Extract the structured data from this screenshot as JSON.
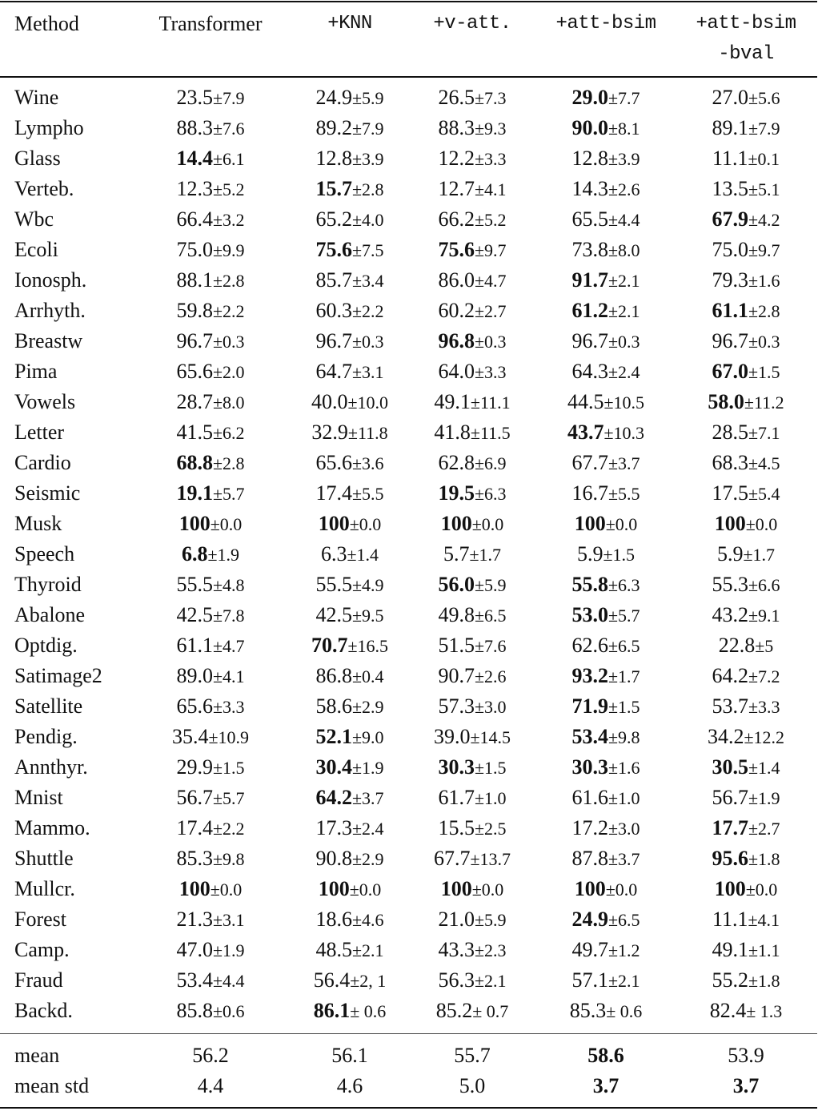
{
  "header": [
    "Method",
    "Transformer",
    "+KNN",
    "+v-att.",
    "+att-bsim",
    "+att-bsim",
    "-bval"
  ],
  "rows": [
    {
      "name": "Wine",
      "cells": [
        [
          "23.5",
          "±7.9",
          0
        ],
        [
          "24.9",
          "±5.9",
          0
        ],
        [
          "26.5",
          "±7.3",
          0
        ],
        [
          "29.0",
          "±7.7",
          1
        ],
        [
          "27.0",
          "±5.6",
          0
        ]
      ]
    },
    {
      "name": "Lympho",
      "cells": [
        [
          "88.3",
          "±7.6",
          0
        ],
        [
          "89.2",
          "±7.9",
          0
        ],
        [
          "88.3",
          "±9.3",
          0
        ],
        [
          "90.0",
          "±8.1",
          1
        ],
        [
          "89.1",
          "±7.9",
          0
        ]
      ]
    },
    {
      "name": "Glass",
      "cells": [
        [
          "14.4",
          "±6.1",
          1
        ],
        [
          "12.8",
          "±3.9",
          0
        ],
        [
          "12.2",
          "±3.3",
          0
        ],
        [
          "12.8",
          "±3.9",
          0
        ],
        [
          "11.1",
          "±0.1",
          0
        ]
      ]
    },
    {
      "name": "Verteb.",
      "cells": [
        [
          "12.3",
          "±5.2",
          0
        ],
        [
          "15.7",
          "±2.8",
          1
        ],
        [
          "12.7",
          "±4.1",
          0
        ],
        [
          "14.3",
          "±2.6",
          0
        ],
        [
          "13.5",
          "±5.1",
          0
        ]
      ]
    },
    {
      "name": "Wbc",
      "cells": [
        [
          "66.4",
          "±3.2",
          0
        ],
        [
          "65.2",
          "±4.0",
          0
        ],
        [
          "66.2",
          "±5.2",
          0
        ],
        [
          "65.5",
          "±4.4",
          0
        ],
        [
          "67.9",
          "±4.2",
          1
        ]
      ]
    },
    {
      "name": "Ecoli",
      "cells": [
        [
          "75.0",
          "±9.9",
          0
        ],
        [
          "75.6",
          "±7.5",
          1
        ],
        [
          "75.6",
          "±9.7",
          1
        ],
        [
          "73.8",
          "±8.0",
          0
        ],
        [
          "75.0",
          "±9.7",
          0
        ]
      ]
    },
    {
      "name": "Ionosph.",
      "cells": [
        [
          "88.1",
          "±2.8",
          0
        ],
        [
          "85.7",
          "±3.4",
          0
        ],
        [
          "86.0",
          "±4.7",
          0
        ],
        [
          "91.7",
          "±2.1",
          1
        ],
        [
          "79.3",
          "±1.6",
          0
        ]
      ]
    },
    {
      "name": "Arrhyth.",
      "cells": [
        [
          "59.8",
          "±2.2",
          0
        ],
        [
          "60.3",
          "±2.2",
          0
        ],
        [
          "60.2",
          "±2.7",
          0
        ],
        [
          "61.2",
          "±2.1",
          1
        ],
        [
          "61.1",
          "±2.8",
          1
        ]
      ]
    },
    {
      "name": "Breastw",
      "cells": [
        [
          "96.7",
          "±0.3",
          0
        ],
        [
          "96.7",
          "±0.3",
          0
        ],
        [
          "96.8",
          "±0.3",
          1
        ],
        [
          "96.7",
          "±0.3",
          0
        ],
        [
          "96.7",
          "±0.3",
          0
        ]
      ]
    },
    {
      "name": "Pima",
      "cells": [
        [
          "65.6",
          "±2.0",
          0
        ],
        [
          "64.7",
          "±3.1",
          0
        ],
        [
          "64.0",
          "±3.3",
          0
        ],
        [
          "64.3",
          "±2.4",
          0
        ],
        [
          "67.0",
          "±1.5",
          1
        ]
      ]
    },
    {
      "name": "Vowels",
      "cells": [
        [
          "28.7",
          "±8.0",
          0
        ],
        [
          "40.0",
          "±10.0",
          0
        ],
        [
          "49.1",
          "±11.1",
          0
        ],
        [
          "44.5",
          "±10.5",
          0
        ],
        [
          "58.0",
          "±11.2",
          1
        ]
      ]
    },
    {
      "name": "Letter",
      "cells": [
        [
          "41.5",
          "±6.2",
          0
        ],
        [
          "32.9",
          "±11.8",
          0
        ],
        [
          "41.8",
          "±11.5",
          0
        ],
        [
          "43.7",
          "±10.3",
          1
        ],
        [
          "28.5",
          "±7.1",
          0
        ]
      ]
    },
    {
      "name": "Cardio",
      "cells": [
        [
          "68.8",
          "±2.8",
          1
        ],
        [
          "65.6",
          "±3.6",
          0
        ],
        [
          "62.8",
          "±6.9",
          0
        ],
        [
          "67.7",
          "±3.7",
          0
        ],
        [
          "68.3",
          "±4.5",
          0
        ]
      ]
    },
    {
      "name": "Seismic",
      "cells": [
        [
          "19.1",
          "±5.7",
          1
        ],
        [
          "17.4",
          "±5.5",
          0
        ],
        [
          "19.5",
          "±6.3",
          1
        ],
        [
          "16.7",
          "±5.5",
          0
        ],
        [
          "17.5",
          "±5.4",
          0
        ]
      ]
    },
    {
      "name": "Musk",
      "cells": [
        [
          "100",
          "±0.0",
          1
        ],
        [
          "100",
          "±0.0",
          1
        ],
        [
          "100",
          "±0.0",
          1
        ],
        [
          "100",
          "±0.0",
          1
        ],
        [
          "100",
          "±0.0",
          1
        ]
      ]
    },
    {
      "name": "Speech",
      "cells": [
        [
          "6.8",
          "±1.9",
          1
        ],
        [
          "6.3",
          "±1.4",
          0
        ],
        [
          "5.7",
          "±1.7",
          0
        ],
        [
          "5.9",
          "±1.5",
          0
        ],
        [
          "5.9",
          "±1.7",
          0
        ]
      ]
    },
    {
      "name": "Thyroid",
      "cells": [
        [
          "55.5",
          "±4.8",
          0
        ],
        [
          "55.5",
          "±4.9",
          0
        ],
        [
          "56.0",
          "±5.9",
          1
        ],
        [
          "55.8",
          "±6.3",
          1
        ],
        [
          "55.3",
          "±6.6",
          0
        ]
      ]
    },
    {
      "name": "Abalone",
      "cells": [
        [
          "42.5",
          "±7.8",
          0
        ],
        [
          "42.5",
          "±9.5",
          0
        ],
        [
          "49.8",
          "±6.5",
          0
        ],
        [
          "53.0",
          "±5.7",
          1
        ],
        [
          "43.2",
          "±9.1",
          0
        ]
      ]
    },
    {
      "name": "Optdig.",
      "cells": [
        [
          "61.1",
          "±4.7",
          0
        ],
        [
          "70.7",
          "±16.5",
          1
        ],
        [
          "51.5",
          "±7.6",
          0
        ],
        [
          "62.6",
          "±6.5",
          0
        ],
        [
          "22.8",
          "±5",
          0
        ]
      ]
    },
    {
      "name": "Satimage2",
      "cells": [
        [
          "89.0",
          "±4.1",
          0
        ],
        [
          "86.8",
          "±0.4",
          0
        ],
        [
          "90.7",
          "±2.6",
          0
        ],
        [
          "93.2",
          "±1.7",
          1
        ],
        [
          "64.2",
          "±7.2",
          0
        ]
      ]
    },
    {
      "name": "Satellite",
      "cells": [
        [
          "65.6",
          "±3.3",
          0
        ],
        [
          "58.6",
          "±2.9",
          0
        ],
        [
          "57.3",
          "±3.0",
          0
        ],
        [
          "71.9",
          "±1.5",
          1
        ],
        [
          "53.7",
          "±3.3",
          0
        ]
      ]
    },
    {
      "name": "Pendig.",
      "cells": [
        [
          "35.4",
          "±10.9",
          0
        ],
        [
          "52.1",
          "±9.0",
          1
        ],
        [
          "39.0",
          "±14.5",
          0
        ],
        [
          "53.4",
          "±9.8",
          1
        ],
        [
          "34.2",
          "±12.2",
          0
        ]
      ]
    },
    {
      "name": "Annthyr.",
      "cells": [
        [
          "29.9",
          "±1.5",
          0
        ],
        [
          "30.4",
          "±1.9",
          1
        ],
        [
          "30.3",
          "±1.5",
          1
        ],
        [
          "30.3",
          "±1.6",
          1
        ],
        [
          "30.5",
          "±1.4",
          1
        ]
      ]
    },
    {
      "name": "Mnist",
      "cells": [
        [
          "56.7",
          "±5.7",
          0
        ],
        [
          "64.2",
          "±3.7",
          1
        ],
        [
          "61.7",
          "±1.0",
          0
        ],
        [
          "61.6",
          "±1.0",
          0
        ],
        [
          "56.7",
          "±1.9",
          0
        ]
      ]
    },
    {
      "name": "Mammo.",
      "cells": [
        [
          "17.4",
          "±2.2",
          0
        ],
        [
          "17.3",
          "±2.4",
          0
        ],
        [
          "15.5",
          "±2.5",
          0
        ],
        [
          "17.2",
          "±3.0",
          0
        ],
        [
          "17.7",
          "±2.7",
          1
        ]
      ]
    },
    {
      "name": "Shuttle",
      "cells": [
        [
          "85.3",
          "±9.8",
          0
        ],
        [
          "90.8",
          "±2.9",
          0
        ],
        [
          "67.7",
          "±13.7",
          0
        ],
        [
          "87.8",
          "±3.7",
          0
        ],
        [
          "95.6",
          "±1.8",
          1
        ]
      ]
    },
    {
      "name": "Mullcr.",
      "cells": [
        [
          "100",
          "±0.0",
          1
        ],
        [
          "100",
          "±0.0",
          1
        ],
        [
          "100",
          "±0.0",
          1
        ],
        [
          "100",
          "±0.0",
          1
        ],
        [
          "100",
          "±0.0",
          1
        ]
      ]
    },
    {
      "name": "Forest",
      "cells": [
        [
          "21.3",
          "±3.1",
          0
        ],
        [
          "18.6",
          "±4.6",
          0
        ],
        [
          "21.0",
          "±5.9",
          0
        ],
        [
          "24.9",
          "±6.5",
          1
        ],
        [
          "11.1",
          "±4.1",
          0
        ]
      ]
    },
    {
      "name": "Camp.",
      "cells": [
        [
          "47.0",
          "±1.9",
          0
        ],
        [
          "48.5",
          "±2.1",
          0
        ],
        [
          "43.3",
          "±2.3",
          0
        ],
        [
          "49.7",
          "±1.2",
          0
        ],
        [
          "49.1",
          "±1.1",
          0
        ]
      ]
    },
    {
      "name": "Fraud",
      "cells": [
        [
          "53.4",
          "±4.4",
          0
        ],
        [
          "56.4",
          "±2, 1",
          0
        ],
        [
          "56.3",
          "±2.1",
          0
        ],
        [
          "57.1",
          "±2.1",
          0
        ],
        [
          "55.2",
          "±1.8",
          0
        ]
      ]
    },
    {
      "name": "Backd.",
      "cells": [
        [
          "85.8",
          "±0.6",
          0
        ],
        [
          "86.1",
          "± 0.6",
          1
        ],
        [
          "85.2",
          "± 0.7",
          0
        ],
        [
          "85.3",
          "± 0.6",
          0
        ],
        [
          "82.4",
          "± 1.3",
          0
        ]
      ]
    }
  ],
  "summary": [
    {
      "name": "mean",
      "cells": [
        [
          "56.2",
          "",
          0
        ],
        [
          "56.1",
          "",
          0
        ],
        [
          "55.7",
          "",
          0
        ],
        [
          "58.6",
          "",
          1
        ],
        [
          "53.9",
          "",
          0
        ]
      ]
    },
    {
      "name": "mean std",
      "cells": [
        [
          "4.4",
          "",
          0
        ],
        [
          "4.6",
          "",
          0
        ],
        [
          "5.0",
          "",
          0
        ],
        [
          "3.7",
          "",
          1
        ],
        [
          "3.7",
          "",
          1
        ]
      ]
    }
  ]
}
